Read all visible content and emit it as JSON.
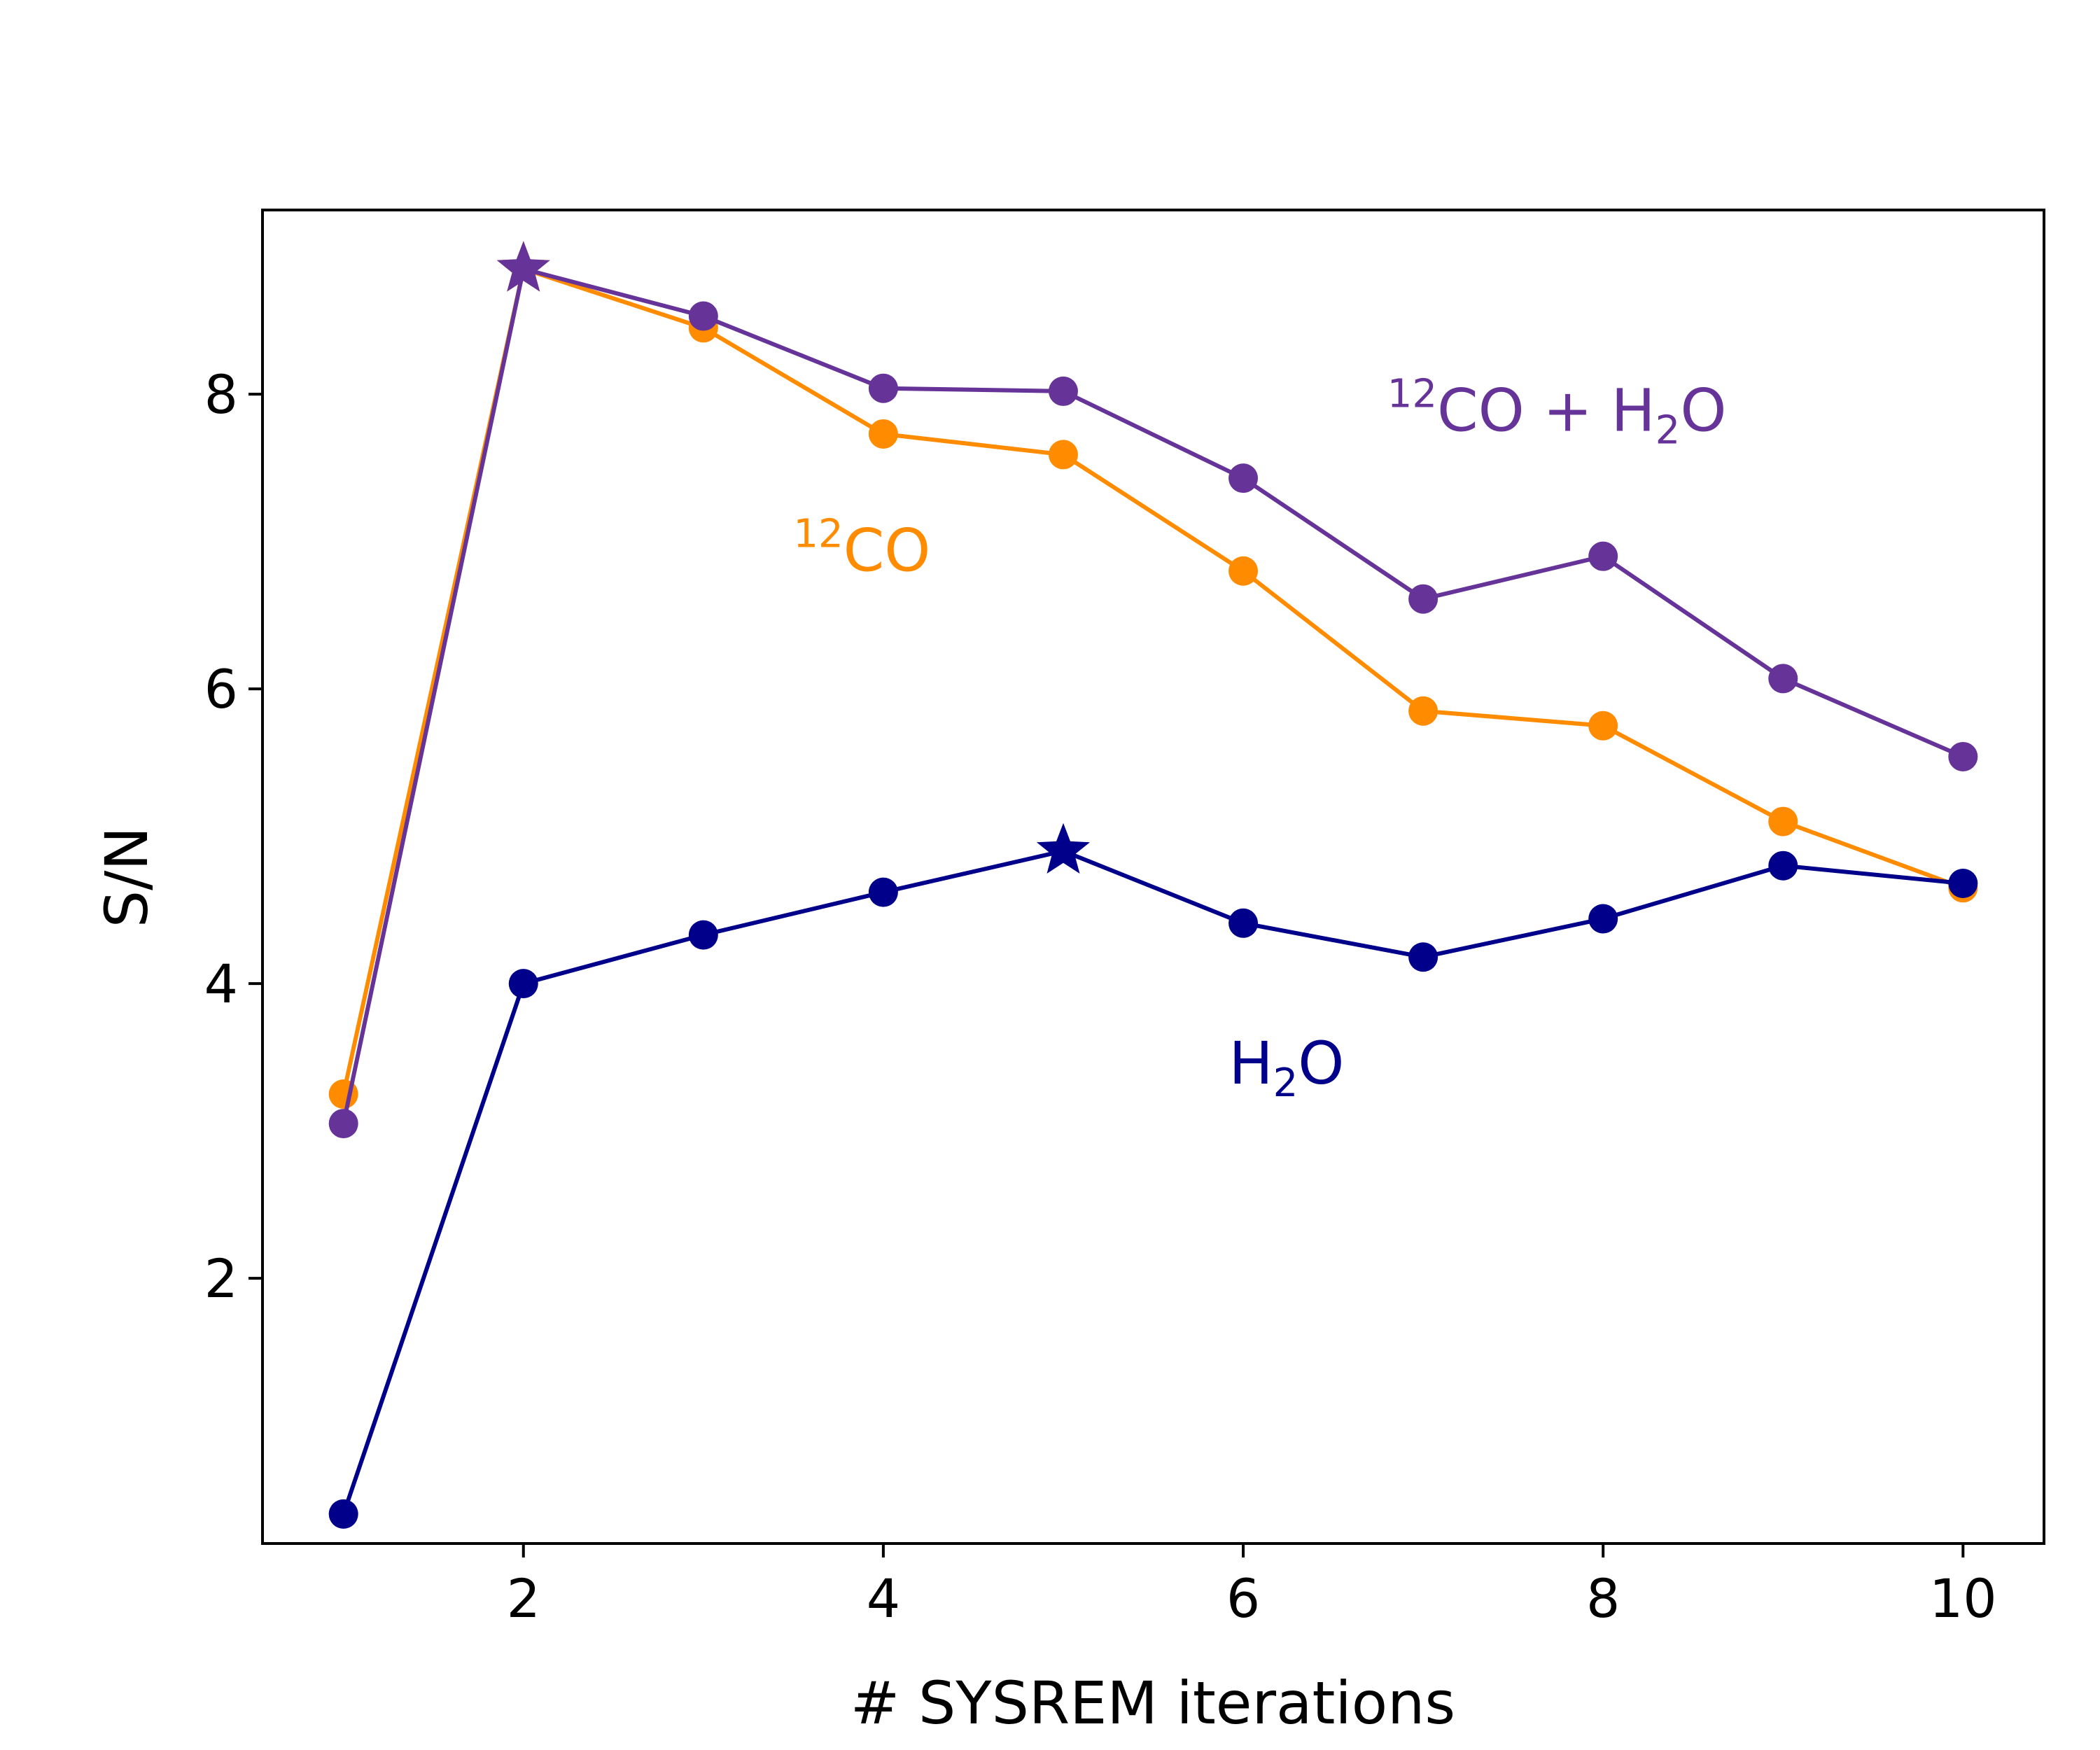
{
  "chart_data": {
    "type": "line",
    "title": "",
    "xlabel": "# SYSREM iterations",
    "ylabel": "S/N",
    "xlim": [
      0.55,
      10.45
    ],
    "ylim": [
      0.2,
      9.25
    ],
    "grid": false,
    "x_ticks": [
      2,
      4,
      6,
      8,
      10
    ],
    "y_ticks": [
      2,
      4,
      6,
      8
    ],
    "x": [
      1,
      2,
      3,
      4,
      5,
      6,
      7,
      8,
      9,
      10
    ],
    "series": [
      {
        "name": "12CO",
        "label": {
          "sup": "12",
          "main": "CO",
          "sub": "",
          "tail": ""
        },
        "color": "#ff8c00",
        "values": [
          3.25,
          8.85,
          8.45,
          7.73,
          7.59,
          6.8,
          5.85,
          5.75,
          5.1,
          4.65
        ],
        "best_index": 1,
        "label_at": [
          3.5,
          6.8
        ]
      },
      {
        "name": "H2O",
        "label": {
          "sup": "",
          "main": "H",
          "sub": "2",
          "tail": "O"
        },
        "color": "#00008b",
        "values": [
          0.4,
          4.0,
          4.33,
          4.62,
          4.9,
          4.41,
          4.18,
          4.44,
          4.8,
          4.68
        ],
        "best_index": 4,
        "label_at": [
          5.92,
          3.32
        ]
      },
      {
        "name": "12CO + H2O",
        "label": {
          "sup": "12",
          "main": "CO + H",
          "sub": "2",
          "tail": "O"
        },
        "color": "#663399",
        "values": [
          3.05,
          8.85,
          8.53,
          8.04,
          8.02,
          7.43,
          6.61,
          6.9,
          6.07,
          5.54
        ],
        "best_index": 1,
        "label_at": [
          6.8,
          7.75
        ]
      }
    ]
  }
}
